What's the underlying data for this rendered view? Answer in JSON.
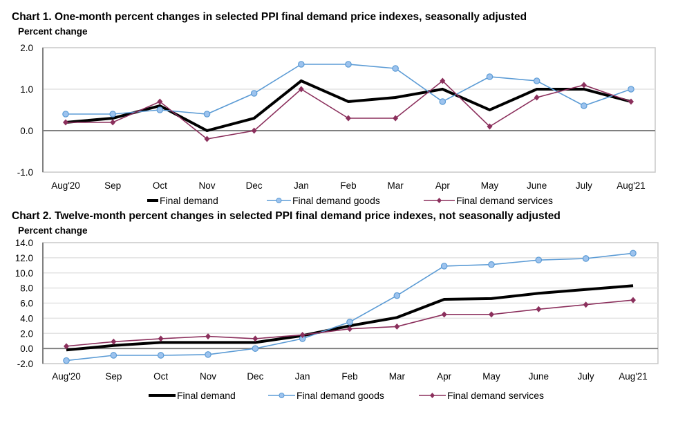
{
  "chart_data": [
    {
      "type": "line",
      "title": "Chart 1. One-month percent changes in selected PPI final demand price indexes, seasonally adjusted",
      "xlabel": "",
      "ylabel": "Percent change",
      "ylim": [
        -1.0,
        2.0
      ],
      "yticks": [
        "2.0",
        "1.0",
        "0.0",
        "-1.0"
      ],
      "ytick_values": [
        2.0,
        1.0,
        0.0,
        -1.0
      ],
      "grid": true,
      "legend_position": "bottom",
      "categories": [
        "Aug'20",
        "Sep",
        "Oct",
        "Nov",
        "Dec",
        "Jan",
        "Feb",
        "Mar",
        "Apr",
        "May",
        "June",
        "July",
        "Aug'21"
      ],
      "series": [
        {
          "name": "Final demand",
          "color": "#000000",
          "marker": "none",
          "values": [
            0.2,
            0.3,
            0.6,
            0.0,
            0.3,
            1.2,
            0.7,
            0.8,
            1.0,
            0.5,
            1.0,
            1.0,
            0.7
          ]
        },
        {
          "name": "Final demand goods",
          "color": "#5b9bd5",
          "marker": "circle",
          "values": [
            0.4,
            0.4,
            0.5,
            0.4,
            0.9,
            1.6,
            1.6,
            1.5,
            0.7,
            1.3,
            1.2,
            0.6,
            1.0
          ]
        },
        {
          "name": "Final demand services",
          "color": "#8b2f5c",
          "marker": "diamond",
          "values": [
            0.2,
            0.2,
            0.7,
            -0.2,
            0.0,
            1.0,
            0.3,
            0.3,
            1.2,
            0.1,
            0.8,
            1.1,
            0.7
          ]
        }
      ]
    },
    {
      "type": "line",
      "title": "Chart 2. Twelve-month percent changes in selected PPI final demand price indexes, not seasonally adjusted",
      "xlabel": "",
      "ylabel": "Percent change",
      "ylim": [
        -2.0,
        14.0
      ],
      "yticks": [
        "14.0",
        "12.0",
        "10.0",
        "8.0",
        "6.0",
        "4.0",
        "2.0",
        "0.0",
        "-2.0"
      ],
      "ytick_values": [
        14.0,
        12.0,
        10.0,
        8.0,
        6.0,
        4.0,
        2.0,
        0.0,
        -2.0
      ],
      "grid": true,
      "legend_position": "bottom",
      "categories": [
        "Aug'20",
        "Sep",
        "Oct",
        "Nov",
        "Dec",
        "Jan",
        "Feb",
        "Mar",
        "Apr",
        "May",
        "June",
        "July",
        "Aug'21"
      ],
      "series": [
        {
          "name": "Final demand",
          "color": "#000000",
          "marker": "none",
          "values": [
            -0.2,
            0.4,
            0.8,
            0.8,
            0.8,
            1.7,
            3.0,
            4.1,
            6.5,
            6.6,
            7.3,
            7.8,
            8.3
          ]
        },
        {
          "name": "Final demand goods",
          "color": "#5b9bd5",
          "marker": "circle",
          "values": [
            -1.6,
            -0.9,
            -0.9,
            -0.8,
            0.0,
            1.3,
            3.5,
            7.0,
            10.9,
            11.1,
            11.7,
            11.9,
            12.6
          ]
        },
        {
          "name": "Final demand services",
          "color": "#8b2f5c",
          "marker": "diamond",
          "values": [
            0.3,
            0.9,
            1.3,
            1.6,
            1.3,
            1.8,
            2.6,
            2.9,
            4.5,
            4.5,
            5.2,
            5.8,
            6.4
          ]
        }
      ]
    }
  ]
}
